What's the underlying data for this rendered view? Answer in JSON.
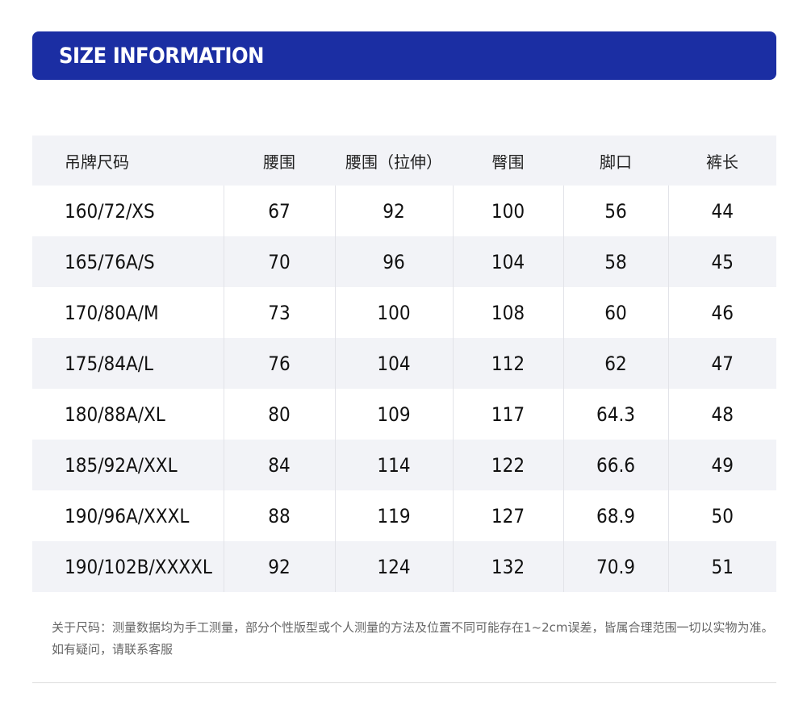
{
  "banner": {
    "title": "SIZE INFORMATION",
    "color": "#1b2ea3"
  },
  "table": {
    "headers": [
      "吊牌尺码",
      "腰围",
      "腰围（拉伸）",
      "臀围",
      "脚口",
      "裤长"
    ],
    "rows": [
      [
        "160/72/XS",
        "67",
        "92",
        "100",
        "56",
        "44"
      ],
      [
        "165/76A/S",
        "70",
        "96",
        "104",
        "58",
        "45"
      ],
      [
        "170/80A/M",
        "73",
        "100",
        "108",
        "60",
        "46"
      ],
      [
        "175/84A/L",
        "76",
        "104",
        "112",
        "62",
        "47"
      ],
      [
        "180/88A/XL",
        "80",
        "109",
        "117",
        "64.3",
        "48"
      ],
      [
        "185/92A/XXL",
        "84",
        "114",
        "122",
        "66.6",
        "49"
      ],
      [
        "190/96A/XXXL",
        "88",
        "119",
        "127",
        "68.9",
        "50"
      ],
      [
        "190/102B/XXXXL",
        "92",
        "124",
        "132",
        "70.9",
        "51"
      ]
    ]
  },
  "note": "关于尺码：测量数据均为手工测量，部分个性版型或个人测量的方法及位置不同可能存在1~2cm误差，皆属合理范围一切以实物为准。如有疑问，请联系客服"
}
